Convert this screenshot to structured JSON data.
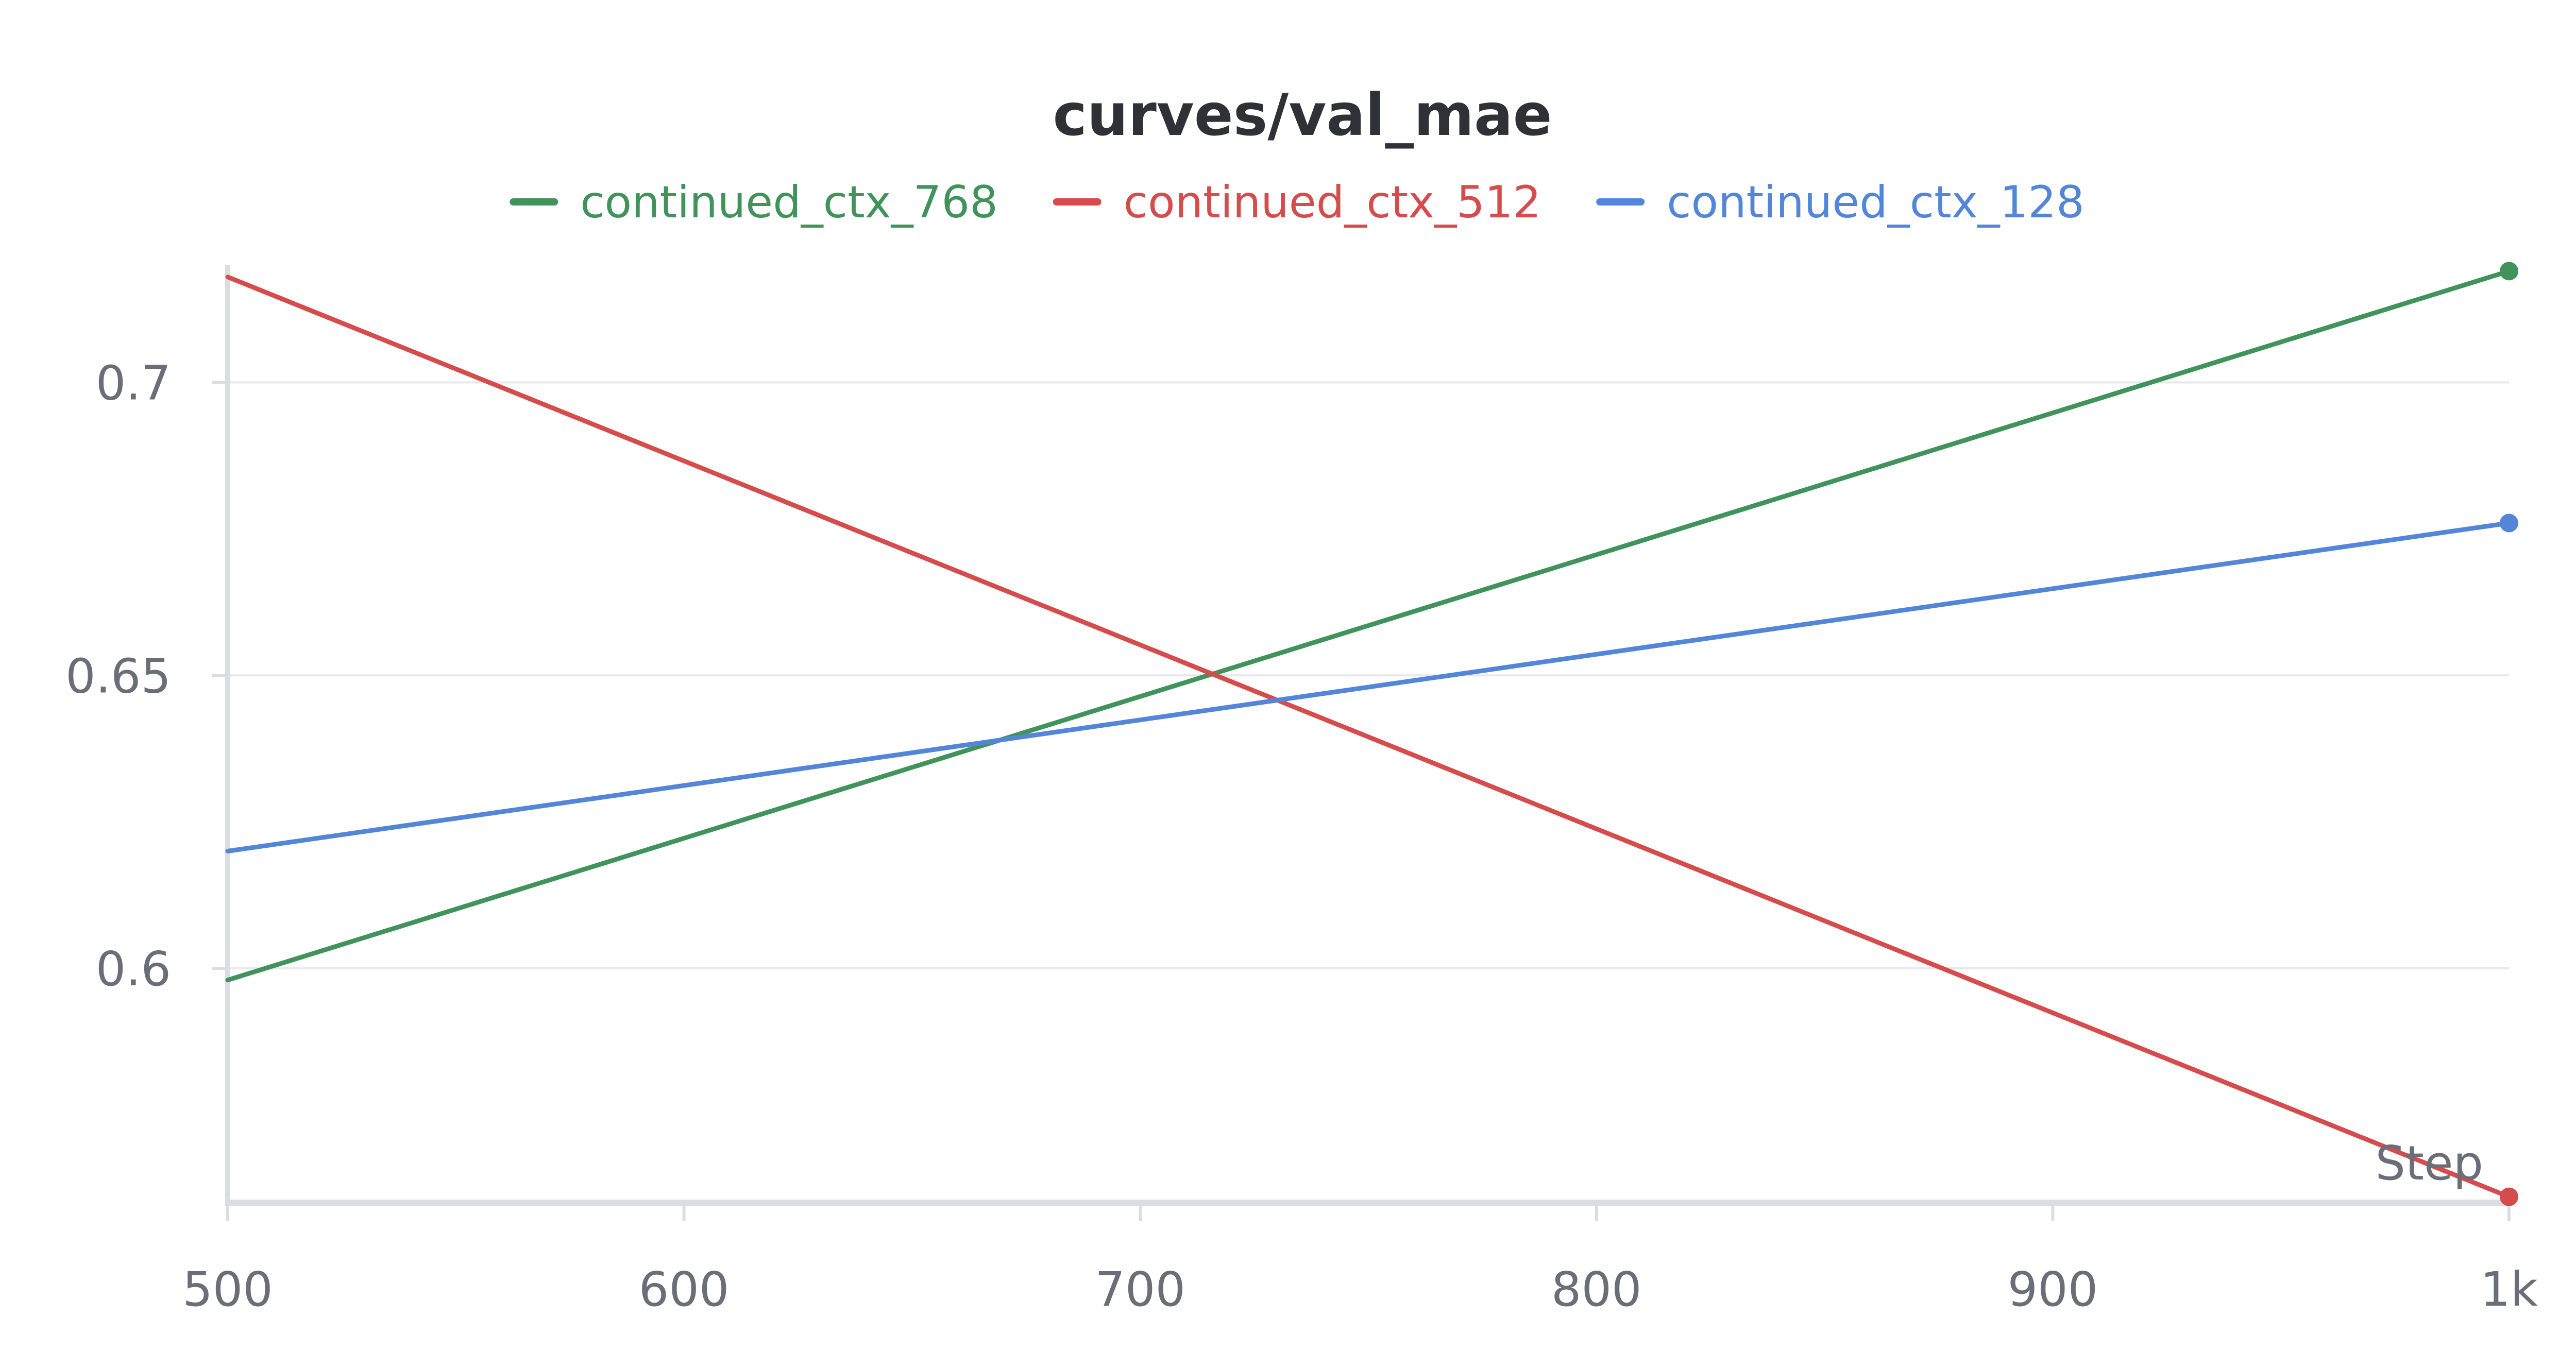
{
  "chart_data": {
    "type": "line",
    "title": "curves/val_mae",
    "xlabel": "Step",
    "ylabel": "",
    "xlim": [
      500,
      1000
    ],
    "ylim": [
      0.56,
      0.72
    ],
    "x_ticks": [
      500,
      600,
      700,
      800,
      900,
      1000
    ],
    "x_tick_labels": [
      "500",
      "600",
      "700",
      "800",
      "900",
      "1k"
    ],
    "y_ticks": [
      0.6,
      0.65,
      0.7
    ],
    "y_tick_labels": [
      "0.6",
      "0.65",
      "0.7"
    ],
    "grid": "horizontal",
    "legend_position": "top-center",
    "series": [
      {
        "name": "continued_ctx_768",
        "color": "#41935c",
        "x": [
          500,
          1000
        ],
        "y": [
          0.598,
          0.719
        ]
      },
      {
        "name": "continued_ctx_512",
        "color": "#d64b4b",
        "x": [
          500,
          1000
        ],
        "y": [
          0.718,
          0.561
        ]
      },
      {
        "name": "continued_ctx_128",
        "color": "#5386d8",
        "x": [
          500,
          1000
        ],
        "y": [
          0.62,
          0.676
        ]
      }
    ]
  }
}
